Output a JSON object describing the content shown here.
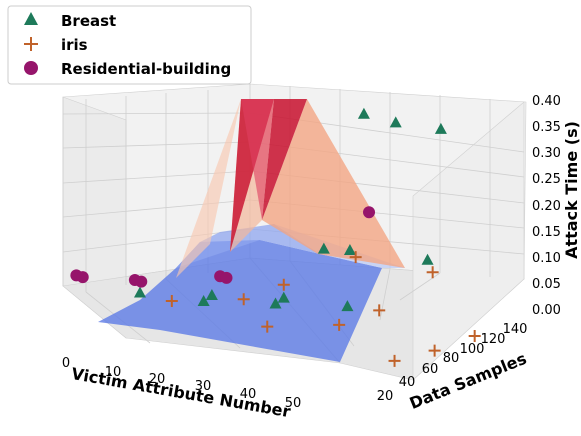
{
  "chart_data": {
    "type": "scatter",
    "projection": "3d",
    "xlabel": "Victim Attribute Number",
    "ylabel": "Data Samples",
    "zlabel": "Attack Time (s)",
    "x_ticks": [
      "0",
      "10",
      "20",
      "30",
      "40",
      "50"
    ],
    "y_ticks": [
      "20",
      "40",
      "60",
      "80",
      "100",
      "120",
      "140"
    ],
    "z_ticks": [
      "0.00",
      "0.05",
      "0.10",
      "0.15",
      "0.20",
      "0.25",
      "0.30",
      "0.35",
      "0.40"
    ],
    "xlim": [
      0,
      55
    ],
    "ylim": [
      10,
      150
    ],
    "zlim": [
      -0.02,
      0.42
    ],
    "grid": true,
    "legend_position": "top-left",
    "colors": {
      "breast": "#1e7a5a",
      "iris": "#c0622a",
      "residential": "#96156b",
      "surface_low": "#5a78e6",
      "surface_mid": "#b8c8f5",
      "surface_high": "#f4a482",
      "surface_peak": "#c8102e"
    },
    "series": [
      {
        "name": "Breast",
        "marker": "triangle",
        "points": [
          [
            10,
            20,
            0.0
          ],
          [
            15,
            50,
            0.0
          ],
          [
            20,
            80,
            0.0
          ],
          [
            20,
            20,
            0.02
          ],
          [
            25,
            50,
            0.02
          ],
          [
            30,
            80,
            0.02
          ],
          [
            20,
            110,
            0.1
          ],
          [
            22,
            120,
            0.1
          ],
          [
            30,
            140,
            0.1
          ],
          [
            20,
            140,
            0.4
          ],
          [
            25,
            140,
            0.4
          ],
          [
            30,
            150,
            0.4
          ]
        ]
      },
      {
        "name": "iris",
        "marker": "plus",
        "points": [
          [
            15,
            20,
            0.0
          ],
          [
            30,
            20,
            0.0
          ],
          [
            50,
            20,
            0.0
          ],
          [
            20,
            50,
            0.01
          ],
          [
            35,
            50,
            0.01
          ],
          [
            50,
            50,
            0.01
          ],
          [
            20,
            80,
            0.03
          ],
          [
            35,
            80,
            0.03
          ],
          [
            50,
            80,
            0.03
          ],
          [
            25,
            110,
            0.1
          ],
          [
            35,
            120,
            0.1
          ],
          [
            55,
            150,
            0.1
          ]
        ]
      },
      {
        "name": "Residential-building",
        "marker": "circle",
        "points": [
          [
            0,
            20,
            0.0
          ],
          [
            1,
            20,
            0.0
          ],
          [
            5,
            40,
            0.0
          ],
          [
            6,
            40,
            0.0
          ],
          [
            10,
            80,
            0.01
          ],
          [
            11,
            80,
            0.01
          ],
          [
            25,
            120,
            0.2
          ]
        ]
      }
    ]
  }
}
